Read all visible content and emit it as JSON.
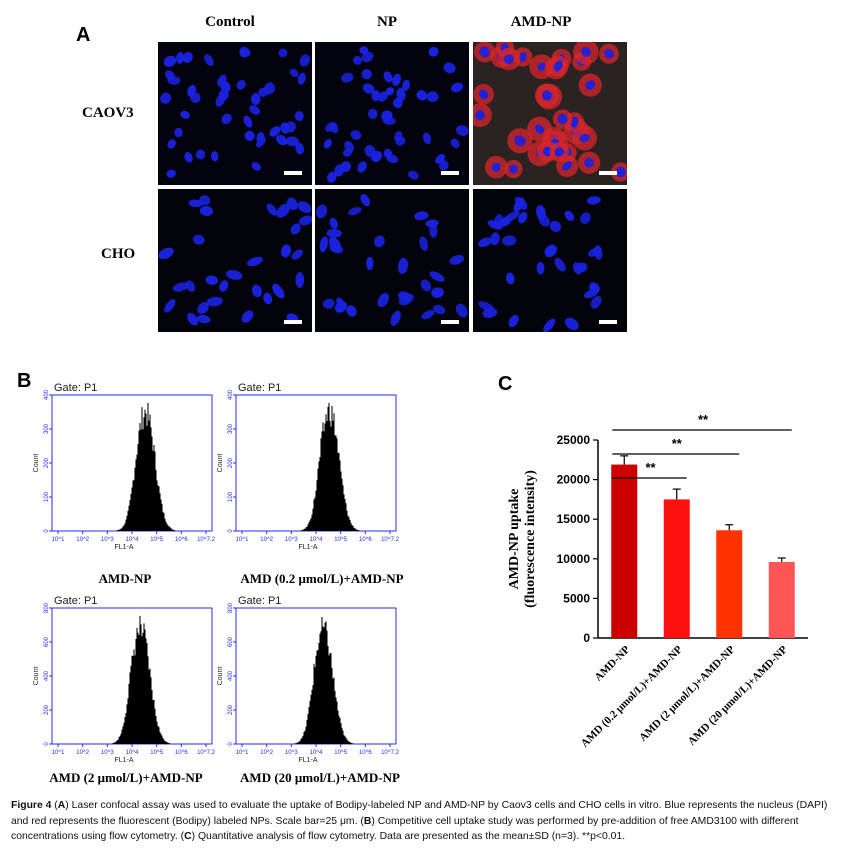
{
  "figure_a": {
    "letter": "A",
    "columns": [
      "Control",
      "NP",
      "AMD-NP"
    ],
    "rows": [
      "CAOV3",
      "CHO"
    ]
  },
  "figure_b": {
    "letter": "B",
    "gate_label": "Gate: P1",
    "x_axis_label": "FL1-A",
    "y_axis_label": "Count",
    "x_ticks": [
      "10^1",
      "10^2",
      "10^3",
      "10^4",
      "10^5",
      "10^6",
      "10^7.2"
    ],
    "panels": [
      {
        "label": "AMD-NP",
        "y_ticks": [
          "0",
          "100",
          "200",
          "300",
          "400"
        ],
        "ymax": 400,
        "peak": 370,
        "center": 0.46
      },
      {
        "label": "AMD (0.2 μmol/L)+AMD-NP",
        "y_ticks": [
          "0",
          "100",
          "200",
          "300",
          "400"
        ],
        "ymax": 400,
        "peak": 375,
        "center": 0.46
      },
      {
        "label": "AMD (2 μmol/L)+AMD-NP",
        "y_ticks": [
          "0",
          "200",
          "400",
          "600",
          "800"
        ],
        "ymax": 800,
        "peak": 720,
        "center": 0.435
      },
      {
        "label": "AMD (20 μmol/L)+AMD-NP",
        "y_ticks": [
          "0",
          "200",
          "400",
          "600",
          "800"
        ],
        "ymax": 800,
        "peak": 715,
        "center": 0.43
      }
    ]
  },
  "chart_data": {
    "type": "bar",
    "panel_letter": "C",
    "title": "",
    "ylabel": "AMD-NP uptake (fluorescence intensity)",
    "ylabel_lines": [
      "AMD-NP uptake",
      "(fluorescence intensity)"
    ],
    "xlabel": "",
    "categories": [
      "AMD-NP",
      "AMD (0.2 μmol/L)+AMD-NP",
      "AMD (2 μmol/L)+AMD-NP",
      "AMD (20 μmol/L)+AMD-NP"
    ],
    "values": [
      21900,
      17500,
      13600,
      9600
    ],
    "errors": [
      1100,
      1300,
      700,
      500
    ],
    "colors": [
      "#cc0000",
      "#ff1111",
      "#ff3300",
      "#ff5555"
    ],
    "ylim": [
      0,
      25000
    ],
    "yticks": [
      "0",
      "5000",
      "10000",
      "15000",
      "20000",
      "25000"
    ],
    "significance": [
      {
        "from": 0,
        "to": 1,
        "label": "**"
      },
      {
        "from": 0,
        "to": 2,
        "label": "**"
      },
      {
        "from": 0,
        "to": 3,
        "label": "**"
      }
    ]
  },
  "caption": {
    "figure_label": "Figure 4",
    "text_A_label": "A",
    "text_A": "Laser confocal assay was used to evaluate the uptake of Bodipy-labeled NP and AMD-NP by Caov3 cells and CHO cells in vitro. Blue represents the nucleus (DAPI) and red represents the fluorescent (Bodipy) labeled NPs. Scale bar=25 μm.",
    "text_B_label": "B",
    "text_B": "Competitive cell uptake study was performed by pre-addition of free AMD3100 with different concentrations using flow cytometry.",
    "text_C_label": "C",
    "text_C": "Quantitative analysis of flow cytometry. Data are presented as the mean±SD (n=3). **p<0.01."
  },
  "colors": {
    "nucleus_blue": "#1a22e0",
    "bodipy_red": "#d8262a",
    "flow_axis_blue": "#2a2aff"
  }
}
